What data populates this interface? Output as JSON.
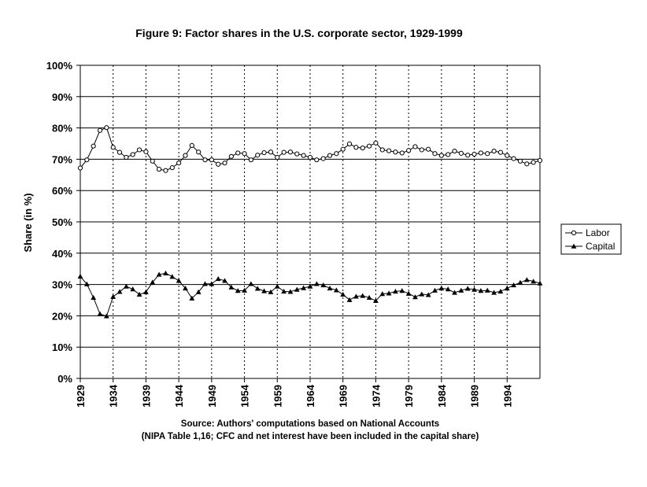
{
  "chart_data": {
    "type": "line",
    "title": "Figure 9: Factor shares in the U.S. corporate sector, 1929-1999",
    "ylabel": "Share (in %)",
    "xlabel": "",
    "ylim": [
      0,
      100
    ],
    "xlim": [
      1929,
      1999
    ],
    "y_ticks": [
      "0%",
      "10%",
      "20%",
      "30%",
      "40%",
      "50%",
      "60%",
      "70%",
      "80%",
      "90%",
      "100%"
    ],
    "x_ticks": [
      1929,
      1934,
      1939,
      1944,
      1949,
      1954,
      1959,
      1964,
      1969,
      1974,
      1979,
      1984,
      1989,
      1994
    ],
    "x_tick_labels": [
      "1929",
      "1934",
      "1939",
      "1944",
      "1949",
      "1954",
      "1959",
      "1964",
      "1969",
      "1974",
      "1979",
      "1984",
      "1989",
      "1994"
    ],
    "grid": "horizontal solid, vertical dotted",
    "legend_position": "right",
    "x": [
      1929,
      1930,
      1931,
      1932,
      1933,
      1934,
      1935,
      1936,
      1937,
      1938,
      1939,
      1940,
      1941,
      1942,
      1943,
      1944,
      1945,
      1946,
      1947,
      1948,
      1949,
      1950,
      1951,
      1952,
      1953,
      1954,
      1955,
      1956,
      1957,
      1958,
      1959,
      1960,
      1961,
      1962,
      1963,
      1964,
      1965,
      1966,
      1967,
      1968,
      1969,
      1970,
      1971,
      1972,
      1973,
      1974,
      1975,
      1976,
      1977,
      1978,
      1979,
      1980,
      1981,
      1982,
      1983,
      1984,
      1985,
      1986,
      1987,
      1988,
      1989,
      1990,
      1991,
      1992,
      1993,
      1994,
      1995,
      1996,
      1997,
      1998,
      1999
    ],
    "series": [
      {
        "name": "Labor",
        "marker": "circle",
        "values": [
          67.2,
          69.8,
          74.2,
          79.2,
          80.1,
          73.8,
          72.2,
          70.6,
          71.5,
          73.0,
          72.4,
          69.4,
          66.8,
          66.4,
          67.3,
          68.8,
          71.2,
          74.4,
          72.3,
          69.8,
          69.8,
          68.4,
          68.8,
          70.9,
          72.0,
          71.8,
          69.8,
          71.3,
          72.1,
          72.3,
          70.6,
          72.2,
          72.3,
          71.7,
          71.2,
          70.6,
          69.8,
          70.2,
          71.2,
          71.8,
          73.2,
          74.9,
          73.8,
          73.6,
          74.2,
          75.2,
          73.0,
          72.7,
          72.3,
          72.0,
          72.8,
          74.0,
          73.0,
          73.2,
          71.8,
          71.2,
          71.5,
          72.6,
          71.9,
          71.3,
          71.6,
          72.0,
          71.8,
          72.6,
          72.2,
          71.2,
          70.2,
          69.4,
          68.5,
          69.0,
          69.6
        ]
      },
      {
        "name": "Capital",
        "marker": "triangle",
        "values": [
          32.6,
          30.1,
          25.8,
          20.6,
          19.9,
          26.1,
          27.7,
          29.4,
          28.5,
          26.8,
          27.6,
          30.7,
          33.2,
          33.6,
          32.5,
          31.2,
          28.8,
          25.6,
          27.6,
          30.2,
          30.2,
          31.8,
          31.2,
          29.1,
          28.0,
          28.1,
          30.2,
          28.7,
          27.9,
          27.6,
          29.4,
          27.8,
          27.7,
          28.4,
          28.9,
          29.4,
          30.2,
          29.8,
          28.8,
          28.2,
          26.8,
          25.1,
          26.2,
          26.4,
          25.8,
          24.8,
          27.0,
          27.2,
          27.8,
          28.0,
          27.1,
          26.0,
          26.9,
          26.7,
          28.1,
          28.8,
          28.5,
          27.4,
          28.1,
          28.7,
          28.4,
          28.0,
          28.1,
          27.4,
          27.8,
          28.8,
          29.8,
          30.6,
          31.5,
          31.0,
          30.4
        ]
      }
    ],
    "source_line1": "Source: Authors' computations based on National Accounts",
    "source_line2": "(NIPA Table 1,16; CFC and net interest have been included in the capital share)"
  },
  "colors": {
    "line": "#000000",
    "background": "#ffffff",
    "grid": "#000000"
  }
}
